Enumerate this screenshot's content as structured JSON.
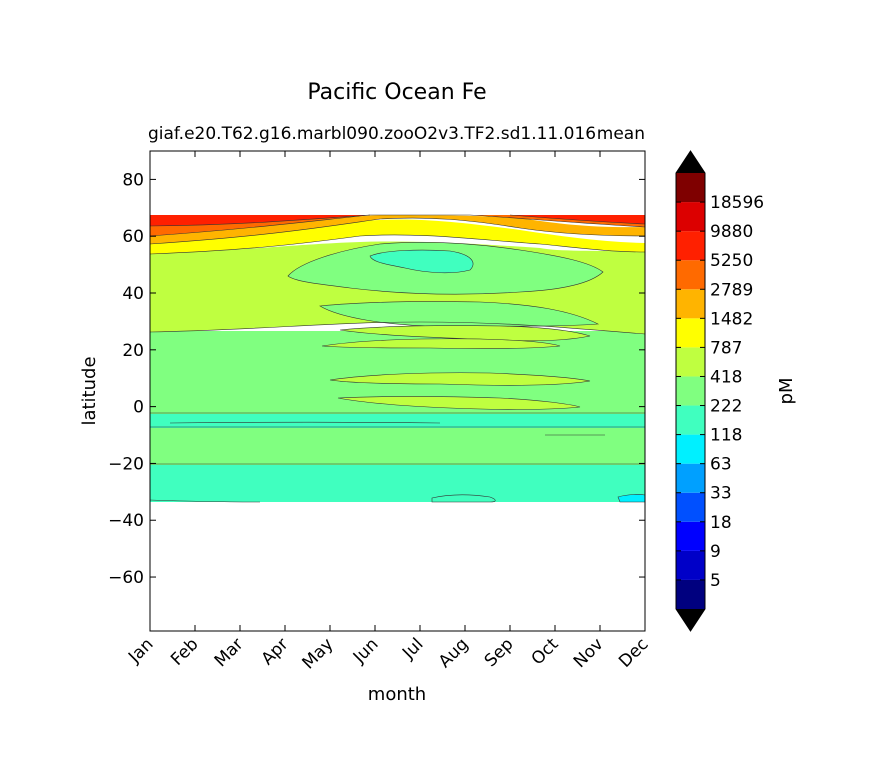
{
  "chart_data": {
    "type": "contour",
    "title": "Pacific Ocean Fe",
    "subtitle_left": "giaf.e20.T62.g16.marbl090.zooO2v3.TF2.sd1.11.016",
    "subtitle_right": "mean",
    "xlabel": "month",
    "ylabel": "latitude",
    "x_tick_labels": [
      "Jan",
      "Feb",
      "Mar",
      "Apr",
      "May",
      "Jun",
      "Jul",
      "Aug",
      "Sep",
      "Oct",
      "Nov",
      "Dec"
    ],
    "x_range": [
      1,
      12
    ],
    "y_range": [
      -79,
      90
    ],
    "y_ticks": [
      80,
      60,
      40,
      20,
      0,
      -20,
      -40,
      -60
    ],
    "y_tick_labels": [
      "80",
      "60",
      "40",
      "20",
      "0",
      "−20",
      "−40",
      "−60"
    ],
    "data_lat_range": [
      -34,
      67
    ],
    "colorbar": {
      "label": "pM",
      "extend": "both",
      "levels": [
        "5",
        "9",
        "18",
        "33",
        "63",
        "118",
        "222",
        "418",
        "787",
        "1482",
        "2789",
        "5250",
        "9880",
        "18596"
      ],
      "colors": [
        "#00007f",
        "#0000c8",
        "#0000ff",
        "#0050ff",
        "#00a0ff",
        "#00f0ff",
        "#40ffbf",
        "#80ff80",
        "#bfff40",
        "#ffff00",
        "#ffb400",
        "#ff6a00",
        "#ff2000",
        "#dc0000",
        "#7f0000"
      ],
      "under_color": "#000000",
      "over_color": "#000000"
    },
    "bands": [
      {
        "lat": [
          -34,
          -21
        ],
        "level": "118-222",
        "color_index": 6
      },
      {
        "lat": [
          -21,
          -8
        ],
        "level": "222-418",
        "color_index": 7
      },
      {
        "lat": [
          -8,
          -3
        ],
        "level": "118-222",
        "color_index": 6
      },
      {
        "lat": [
          -3,
          26
        ],
        "level": "222-418",
        "color_index": 7
      },
      {
        "lat": [
          26,
          54
        ],
        "level": "418-787",
        "color_index": 8
      },
      {
        "lat": [
          54,
          58
        ],
        "level": "787-1482",
        "color_index": 9
      },
      {
        "lat": [
          58,
          61
        ],
        "level": "1482-2789",
        "color_index": 10
      },
      {
        "lat": [
          61,
          64
        ],
        "level": "2789-5250",
        "color_index": 11
      },
      {
        "lat": [
          64,
          67
        ],
        "level": "5250-9880",
        "color_index": 12
      }
    ]
  }
}
